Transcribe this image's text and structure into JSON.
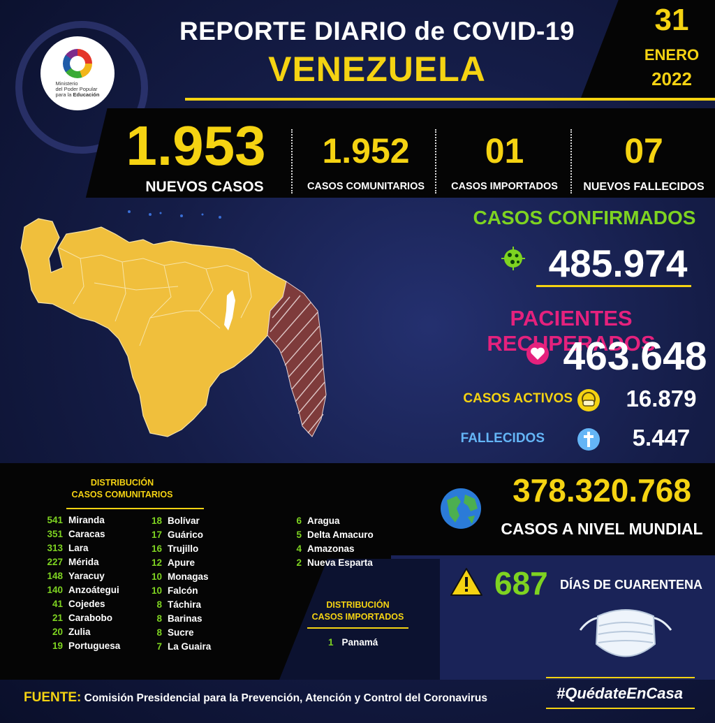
{
  "header": {
    "title_line1": "REPORTE DIARIO de COVID-19",
    "title_line2": "VENEZUELA",
    "logo_text_line1": "Ministerio",
    "logo_text_line2": "del Poder Popular",
    "logo_text_line3": "para la",
    "logo_text_line3b": "Educación"
  },
  "date": {
    "day": "31",
    "month": "ENERO",
    "year": "2022"
  },
  "stats": {
    "new_cases": {
      "value": "1.953",
      "label": "NUEVOS CASOS"
    },
    "community": {
      "value": "1.952",
      "label": "CASOS COMUNITARIOS"
    },
    "imported": {
      "value": "01",
      "label": "CASOS IMPORTADOS"
    },
    "deaths_new": {
      "value": "07",
      "label": "NUEVOS FALLECIDOS"
    }
  },
  "totals": {
    "confirmed": {
      "label": "CASOS CONFIRMADOS",
      "value": "485.974"
    },
    "recovered": {
      "label": "PACIENTES RECUPERADOS",
      "value": "463.648"
    },
    "active": {
      "label": "CASOS ACTIVOS",
      "value": "16.879"
    },
    "deceased": {
      "label": "FALLECIDOS",
      "value": "5.447"
    }
  },
  "distribution": {
    "title_line1": "DISTRIBUCIÓN",
    "title_line2": "CASOS COMUNITARIOS",
    "col1": [
      {
        "n": "541",
        "state": "Miranda"
      },
      {
        "n": "351",
        "state": "Caracas"
      },
      {
        "n": "313",
        "state": "Lara"
      },
      {
        "n": "227",
        "state": "Mérida"
      },
      {
        "n": "148",
        "state": "Yaracuy"
      },
      {
        "n": "140",
        "state": "Anzoátegui"
      },
      {
        "n": "41",
        "state": "Cojedes"
      },
      {
        "n": "21",
        "state": "Carabobo"
      },
      {
        "n": "20",
        "state": "Zulia"
      },
      {
        "n": "19",
        "state": "Portuguesa"
      }
    ],
    "col2": [
      {
        "n": "18",
        "state": "Bolívar"
      },
      {
        "n": "17",
        "state": "Guárico"
      },
      {
        "n": "16",
        "state": "Trujillo"
      },
      {
        "n": "12",
        "state": "Apure"
      },
      {
        "n": "10",
        "state": "Monagas"
      },
      {
        "n": "10",
        "state": "Falcón"
      },
      {
        "n": "8",
        "state": "Táchira"
      },
      {
        "n": "8",
        "state": "Barinas"
      },
      {
        "n": "8",
        "state": "Sucre"
      },
      {
        "n": "7",
        "state": "La Guaira"
      }
    ],
    "col3": [
      {
        "n": "6",
        "state": "Aragua"
      },
      {
        "n": "5",
        "state": "Delta Amacuro"
      },
      {
        "n": "4",
        "state": "Amazonas"
      },
      {
        "n": "2",
        "state": "Nueva Esparta"
      }
    ]
  },
  "imported_distribution": {
    "title_line1": "DISTRIBUCIÓN",
    "title_line2": "CASOS IMPORTADOS",
    "rows": [
      {
        "n": "1",
        "country": "Panamá"
      }
    ]
  },
  "world": {
    "value": "378.320.768",
    "label": "CASOS A NIVEL MUNDIAL"
  },
  "quarantine": {
    "value": "687",
    "label": "DÍAS DE CUARENTENA"
  },
  "footer": {
    "source_key": "FUENTE:",
    "source_value": "Comisión Presidencial para la Prevención, Atención y Control del Coronavirus",
    "hashtag": "#QuédateEnCasa"
  },
  "colors": {
    "accent_yellow": "#f5d312",
    "green": "#7ed321",
    "pink": "#e5217d",
    "blue": "#64b5f6",
    "map_fill": "#f0bf3c",
    "map_highlight": "#7e3b3b"
  },
  "icons": [
    "virus-icon",
    "heart-icon",
    "mask-icon",
    "cross-icon",
    "globe-icon",
    "warning-icon",
    "face-mask-icon"
  ]
}
